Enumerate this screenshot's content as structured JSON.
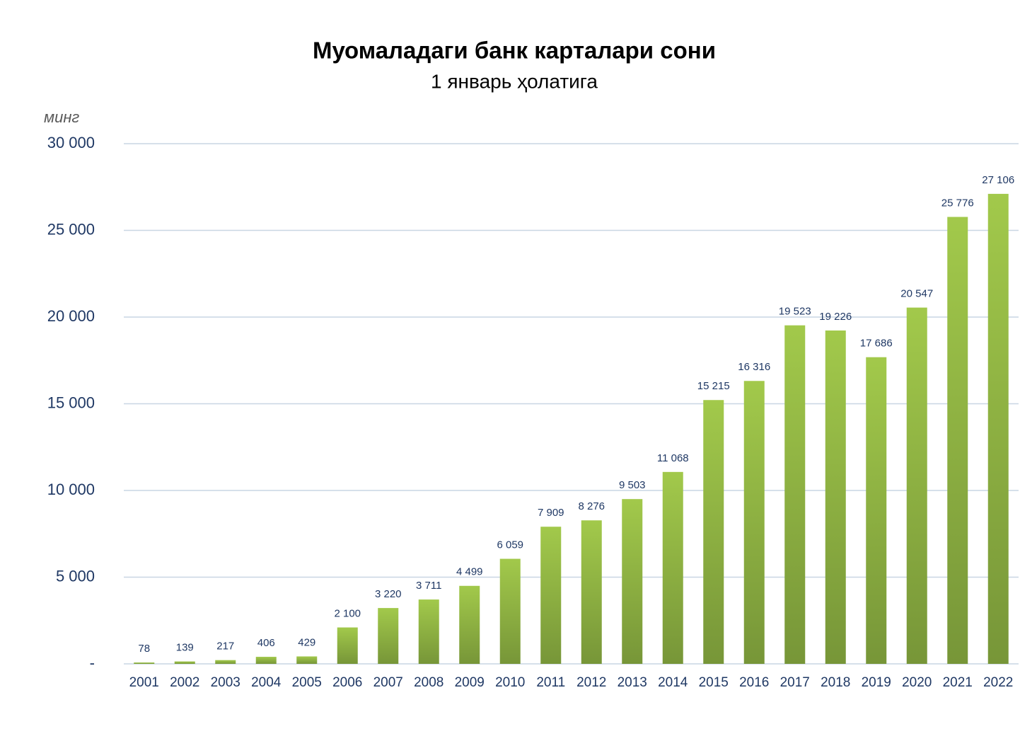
{
  "chart_data": {
    "type": "bar",
    "title": "Муомаладаги банк карталари сони",
    "subtitle": "1 январь ҳолатига",
    "y_unit": "минг",
    "categories": [
      "2001",
      "2002",
      "2003",
      "2004",
      "2005",
      "2006",
      "2007",
      "2008",
      "2009",
      "2010",
      "2011",
      "2012",
      "2013",
      "2014",
      "2015",
      "2016",
      "2017",
      "2018",
      "2019",
      "2020",
      "2021",
      "2022"
    ],
    "values": [
      78,
      139,
      217,
      406,
      429,
      2100,
      3220,
      3711,
      4499,
      6059,
      7909,
      8276,
      9503,
      11068,
      15215,
      16316,
      19523,
      19226,
      17686,
      20547,
      25776,
      27106
    ],
    "value_labels": [
      "78",
      "139",
      "217",
      "406",
      "429",
      "2 100",
      "3 220",
      "3 711",
      "4 499",
      "6 059",
      "7 909",
      "8 276",
      "9 503",
      "11 068",
      "15 215",
      "16 316",
      "19 523",
      "19 226",
      "17 686",
      "20 547",
      "25 776",
      "27 106"
    ],
    "color": "#8db545",
    "ylim": [
      0,
      30000
    ],
    "yticks": [
      {
        "value": 0,
        "label": "-"
      },
      {
        "value": 5000,
        "label": "5 000"
      },
      {
        "value": 10000,
        "label": "10 000"
      },
      {
        "value": 15000,
        "label": "15 000"
      },
      {
        "value": 20000,
        "label": "20 000"
      },
      {
        "value": 25000,
        "label": "25 000"
      },
      {
        "value": 30000,
        "label": "30 000"
      }
    ],
    "grid": true
  }
}
